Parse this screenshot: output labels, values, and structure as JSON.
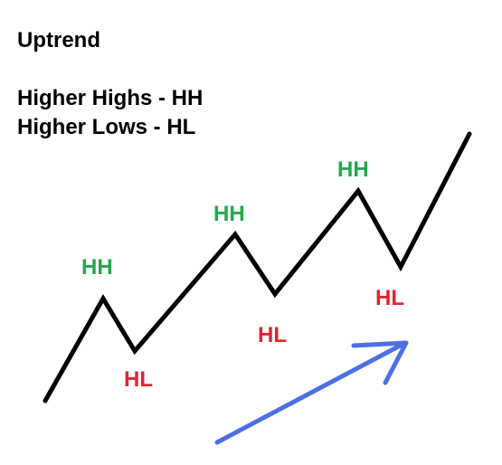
{
  "heading": {
    "title": "Uptrend",
    "line1": "Higher Highs - HH",
    "line2": "Higher Lows - HL"
  },
  "labels": {
    "hh": [
      "HH",
      "HH",
      "HH"
    ],
    "hl": [
      "HL",
      "HL",
      "HL"
    ]
  },
  "colors": {
    "trend_line": "#000000",
    "higher_high": "#22a94a",
    "higher_low": "#e4232f",
    "arrow": "#4d6fe6"
  }
}
